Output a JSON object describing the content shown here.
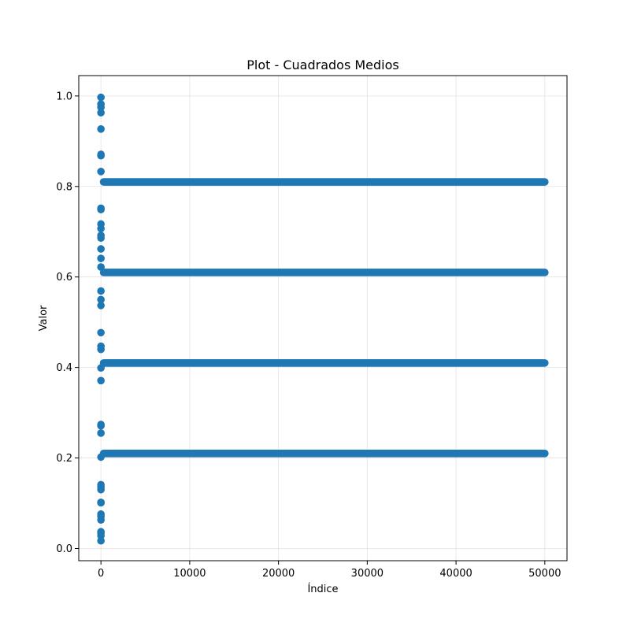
{
  "chart_data": {
    "type": "scatter",
    "title": "Plot - Cuadrados Medios",
    "xlabel": "Índice",
    "ylabel": "Valor",
    "xlim": [
      -2500,
      52500
    ],
    "ylim": [
      -0.027,
      1.045
    ],
    "xticks": [
      0,
      10000,
      20000,
      30000,
      40000,
      50000
    ],
    "xtick_labels": [
      "0",
      "10000",
      "20000",
      "30000",
      "40000",
      "50000"
    ],
    "yticks": [
      0.0,
      0.2,
      0.4,
      0.6,
      0.8,
      1.0
    ],
    "ytick_labels": [
      "0.0",
      "0.2",
      "0.4",
      "0.6",
      "0.8",
      "1.0"
    ],
    "grid": true,
    "color": "#1f77b4",
    "initial_points": {
      "x": 0,
      "y": [
        0.997,
        0.982,
        0.975,
        0.963,
        0.927,
        0.871,
        0.868,
        0.833,
        0.752,
        0.749,
        0.717,
        0.707,
        0.692,
        0.686,
        0.662,
        0.641,
        0.622,
        0.569,
        0.55,
        0.537,
        0.477,
        0.447,
        0.44,
        0.399,
        0.371,
        0.274,
        0.271,
        0.255,
        0.202,
        0.141,
        0.136,
        0.13,
        0.102,
        0.101,
        0.076,
        0.071,
        0.063,
        0.037,
        0.034,
        0.028,
        0.017
      ]
    },
    "series": [
      {
        "x_range": [
          300,
          50000
        ],
        "y": 0.81
      },
      {
        "x_range": [
          300,
          50000
        ],
        "y": 0.61
      },
      {
        "x_range": [
          300,
          50000
        ],
        "y": 0.41
      },
      {
        "x_range": [
          300,
          50000
        ],
        "y": 0.21
      }
    ]
  }
}
